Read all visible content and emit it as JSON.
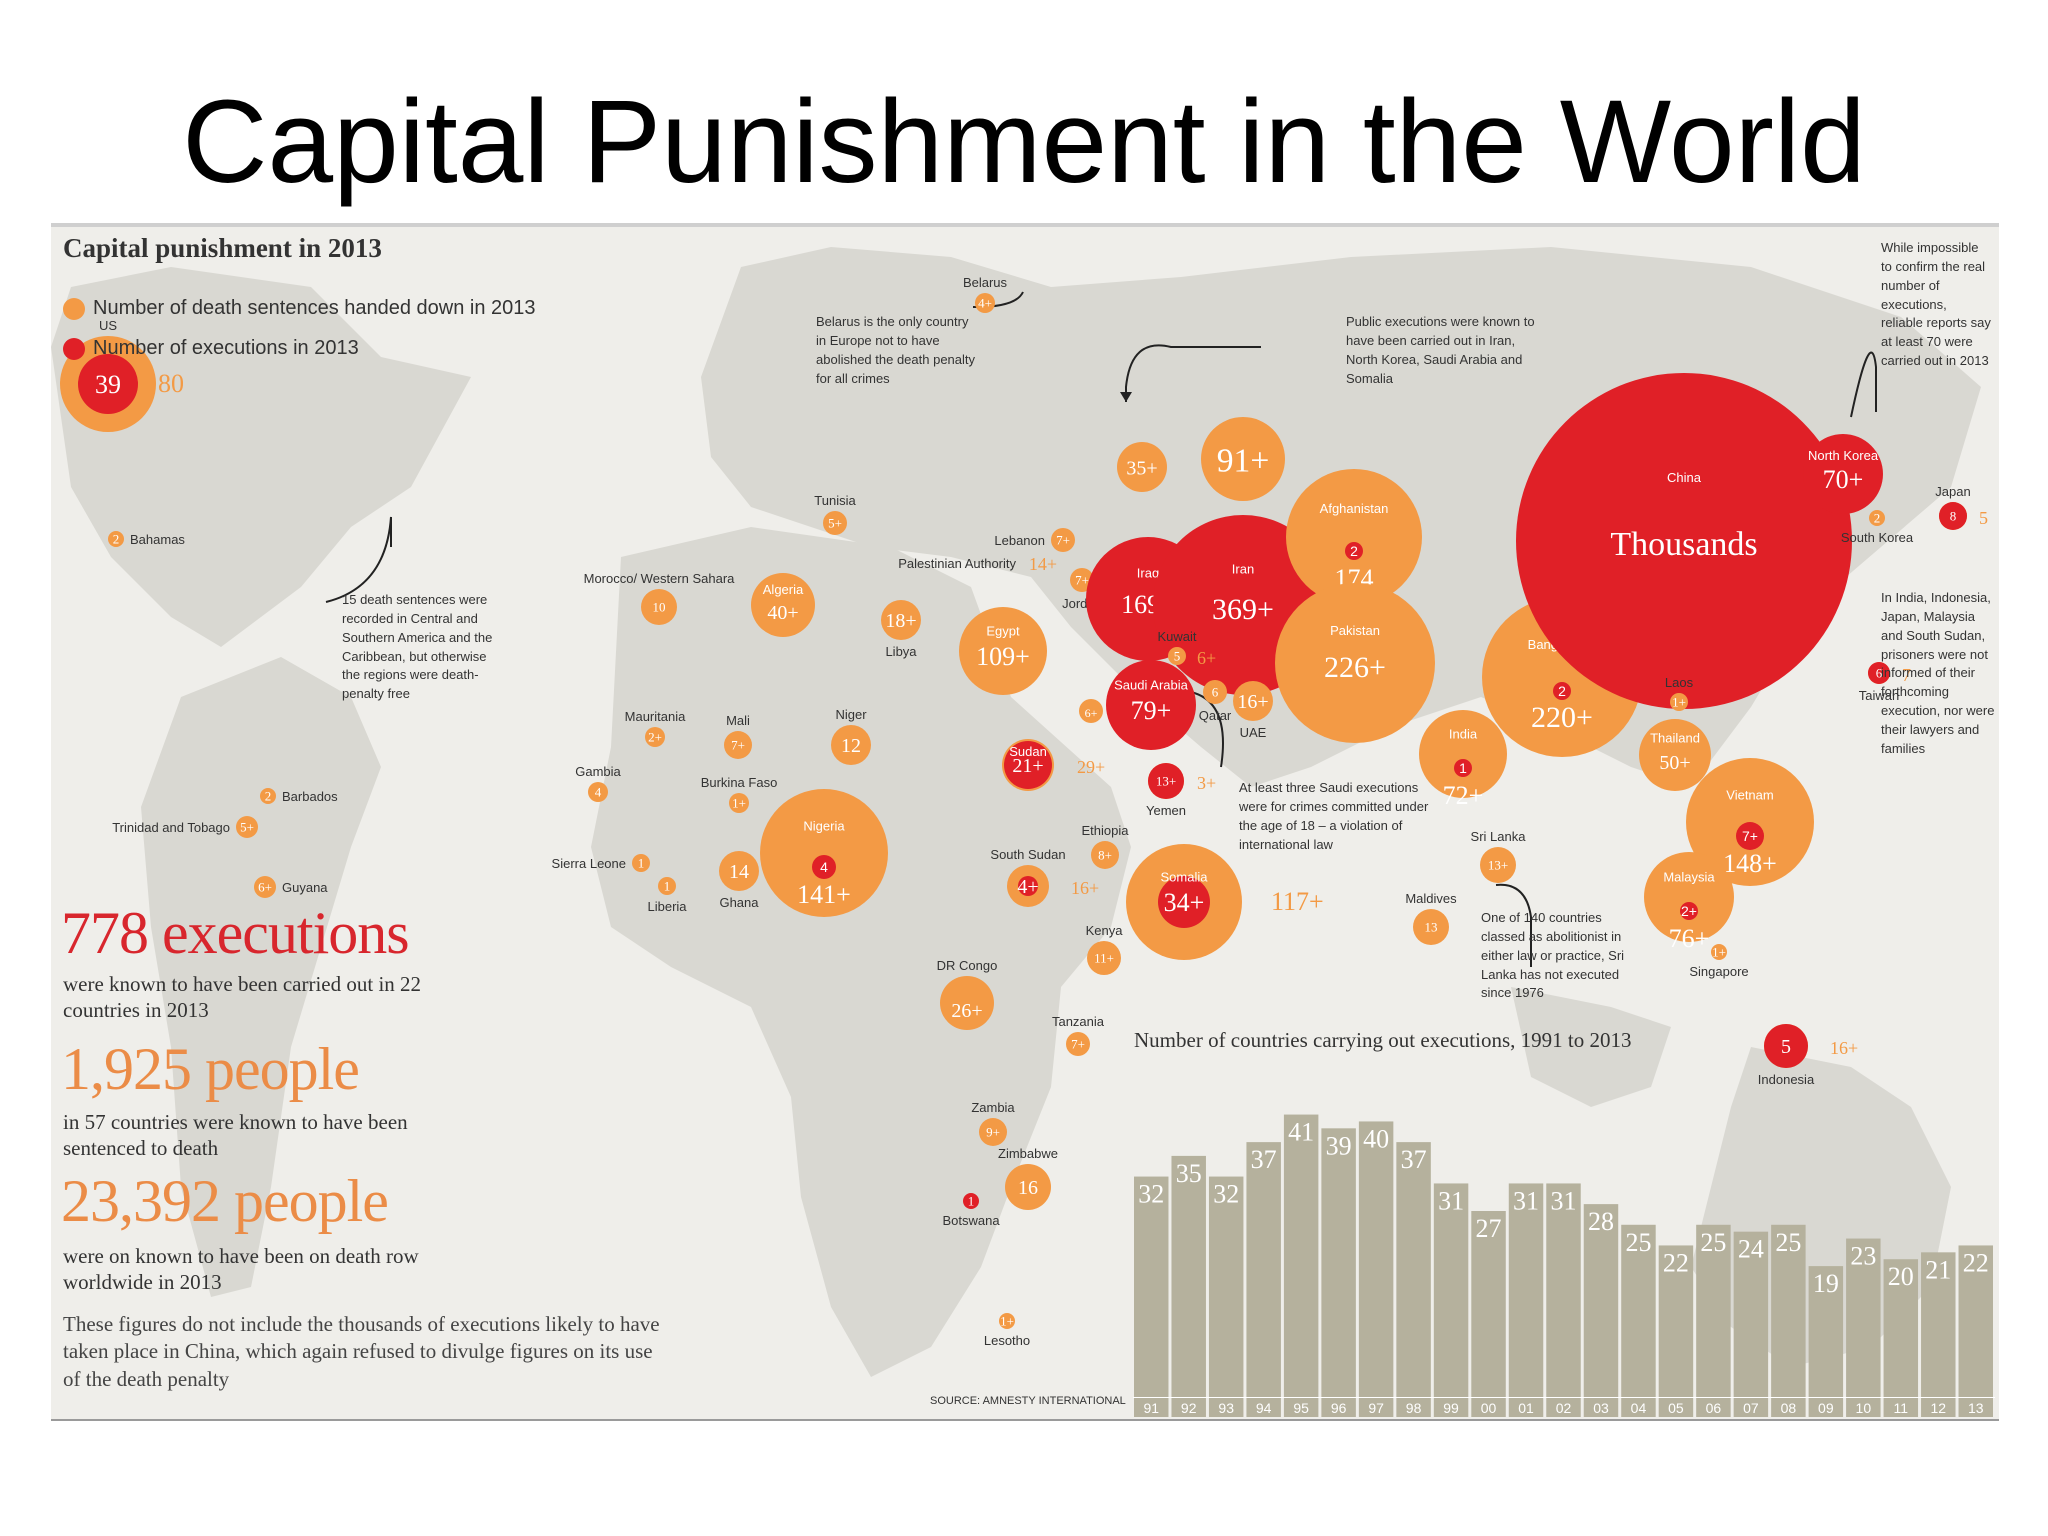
{
  "slide_title": "Capital Punishment in the World",
  "panel": {
    "heading": "Capital punishment in 2013",
    "legend": {
      "sentences_label": "Number of death sentences handed down in 2013",
      "executions_label": "Number of executions in 2013",
      "sentences_color": "#f39a45",
      "executions_color": "#e02027"
    },
    "stats": {
      "executions_big": "778 executions",
      "executions_text": "were known to have been carried out in 22 countries in 2013",
      "sentenced_big": "1,925 people",
      "sentenced_text": "in 57 countries were known to have been sentenced to death",
      "deathrow_big": "23,392 people",
      "deathrow_text": "were on known to have been on death row worldwide in 2013",
      "note": "These figures do not include the thousands of executions likely to have taken place in China, which again refused to divulge figures on its use of the death penalty"
    },
    "annotations": {
      "belarus": "Belarus is the only country in Europe not to have abolished the death penalty for all crimes",
      "public": "Public executions were known to have been carried out in Iran, North Korea, Saudi Arabia and Somalia",
      "nkorea": "While impossible to confirm the real number of executions, reliable reports say at least 70 were carried out in 2013",
      "latam": "15 death sentences were recorded in Central and Southern America and the Caribbean, but otherwise the regions were death-penalty free",
      "saudi": "At least three Saudi executions were for crimes committed under the age of 18 – a violation of international law",
      "srilanka": "One of 140 countries classed as abolitionist in either law or practice, Sri Lanka has not executed since 1976",
      "asia": "In India, Indonesia, Japan, Malaysia and South Sudan, prisoners were not informed of their forthcoming execution, nor were their lawyers and families"
    },
    "source": "SOURCE: AMNESTY INTERNATIONAL"
  },
  "countries": [
    {
      "name": "US",
      "executions": "39",
      "sentences": "80"
    },
    {
      "name": "Bahamas",
      "sentences": "2"
    },
    {
      "name": "Barbados",
      "sentences": "2"
    },
    {
      "name": "Trinidad and Tobago",
      "sentences": "5+"
    },
    {
      "name": "Guyana",
      "sentences": "6+"
    },
    {
      "name": "Belarus",
      "sentences": "4+"
    },
    {
      "name": "Tunisia",
      "sentences": "5+"
    },
    {
      "name": "Morocco/ Western Sahara",
      "sentences": "10"
    },
    {
      "name": "Algeria",
      "sentences": "40+"
    },
    {
      "name": "Libya",
      "sentences": "18+"
    },
    {
      "name": "Egypt",
      "sentences": "109+"
    },
    {
      "name": "Palestinian Authority",
      "sentences": "14+"
    },
    {
      "name": "Lebanon",
      "sentences": "7+"
    },
    {
      "name": "Jordan",
      "sentences": "7+"
    },
    {
      "name": "Mauritania",
      "sentences": "2+"
    },
    {
      "name": "Mali",
      "sentences": "7+"
    },
    {
      "name": "Niger",
      "sentences": "12"
    },
    {
      "name": "Gambia",
      "sentences": "4"
    },
    {
      "name": "Burkina Faso",
      "sentences": "1+"
    },
    {
      "name": "Sierra Leone",
      "sentences": "1"
    },
    {
      "name": "Liberia",
      "sentences": "1"
    },
    {
      "name": "Ghana",
      "sentences": "14"
    },
    {
      "name": "Nigeria",
      "executions": "4",
      "sentences": "141+"
    },
    {
      "name": "Sudan",
      "executions": "21+",
      "sentences": "29+"
    },
    {
      "name": "South Sudan",
      "executions": "4+",
      "sentences": "16+"
    },
    {
      "name": "Ethiopia",
      "sentences": "8+"
    },
    {
      "name": "Somalia",
      "executions": "34+",
      "sentences": "117+"
    },
    {
      "name": "Kenya",
      "sentences": "11+"
    },
    {
      "name": "DR Congo",
      "sentences": "26+"
    },
    {
      "name": "Tanzania",
      "sentences": "7+"
    },
    {
      "name": "Zambia",
      "sentences": "9+"
    },
    {
      "name": "Zimbabwe",
      "sentences": "16"
    },
    {
      "name": "Botswana",
      "executions": "1"
    },
    {
      "name": "Lesotho",
      "sentences": "1+"
    },
    {
      "name": "Iraq",
      "executions": "169+",
      "sentences": "35+"
    },
    {
      "name": "Iran",
      "executions": "369+",
      "sentences": "91+"
    },
    {
      "name": "Kuwait",
      "executions": "5",
      "sentences": "6+"
    },
    {
      "name": "Saudi Arabia",
      "executions": "79+",
      "sentences": "6+"
    },
    {
      "name": "Qatar",
      "sentences": "6"
    },
    {
      "name": "UAE",
      "sentences": "16+"
    },
    {
      "name": "Yemen",
      "executions": "13+",
      "sentences": "3+"
    },
    {
      "name": "Afghanistan",
      "executions": "2",
      "sentences": "174"
    },
    {
      "name": "Pakistan",
      "sentences": "226+"
    },
    {
      "name": "India",
      "executions": "1",
      "sentences": "72+"
    },
    {
      "name": "Sri Lanka",
      "sentences": "13+"
    },
    {
      "name": "Maldives",
      "sentences": "13"
    },
    {
      "name": "Bangladesh",
      "executions": "2",
      "sentences": "220+"
    },
    {
      "name": "China",
      "executions": "Thousands"
    },
    {
      "name": "North Korea",
      "executions": "70+"
    },
    {
      "name": "South Korea",
      "sentences": "2"
    },
    {
      "name": "Japan",
      "executions": "8",
      "sentences": "5"
    },
    {
      "name": "Taiwan",
      "executions": "6",
      "sentences": "7"
    },
    {
      "name": "Laos",
      "sentences": "1+"
    },
    {
      "name": "Thailand",
      "sentences": "50+"
    },
    {
      "name": "Vietnam",
      "executions": "7+",
      "sentences": "148+"
    },
    {
      "name": "Malaysia",
      "executions": "2+",
      "sentences": "76+"
    },
    {
      "name": "Singapore",
      "sentences": "1+"
    },
    {
      "name": "Indonesia",
      "executions": "5",
      "sentences": "16+"
    }
  ],
  "chart_data": {
    "type": "bar",
    "title": "Number of countries carrying out executions, 1991 to 2013",
    "categories": [
      "91",
      "92",
      "93",
      "94",
      "95",
      "96",
      "97",
      "98",
      "99",
      "00",
      "01",
      "02",
      "03",
      "04",
      "05",
      "06",
      "07",
      "08",
      "09",
      "10",
      "11",
      "12",
      "13"
    ],
    "values": [
      32,
      35,
      32,
      37,
      41,
      39,
      40,
      37,
      31,
      27,
      31,
      31,
      28,
      25,
      22,
      25,
      24,
      25,
      19,
      23,
      20,
      21,
      22
    ],
    "ylim": [
      0,
      45
    ],
    "bar_color": "#b5b19d"
  }
}
